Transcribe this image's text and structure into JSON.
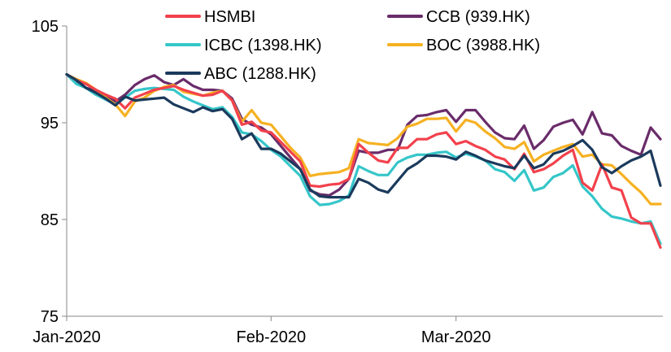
{
  "chart_data": {
    "type": "line",
    "title": "",
    "xlabel": "",
    "ylabel": "",
    "ylim": [
      75,
      105
    ],
    "yticks": [
      75,
      85,
      95,
      105
    ],
    "xticks": [
      {
        "label": "Jan-2020",
        "x": 0
      },
      {
        "label": "Feb-2020",
        "x": 21
      },
      {
        "label": "Mar-2020",
        "x": 40
      }
    ],
    "x_count": 62,
    "grid": false,
    "legend_position": "top",
    "series": [
      {
        "name": "HSMBI",
        "color": "#F2414C",
        "values": [
          100,
          99.4,
          99,
          98.4,
          97.9,
          97.5,
          96.5,
          97.6,
          98,
          98.4,
          98.6,
          98.8,
          98.4,
          98.1,
          97.8,
          97.9,
          98.3,
          97.3,
          94.8,
          95.1,
          94.2,
          94,
          93,
          92,
          91,
          88.5,
          88.4,
          88.6,
          88.7,
          89.2,
          92.8,
          91.9,
          91.1,
          90.9,
          92.4,
          92.4,
          93.3,
          93.3,
          93.8,
          94,
          92.8,
          93.1,
          92.6,
          92.2,
          91.5,
          91.2,
          90.2,
          91.8,
          89.9,
          90.2,
          90.8,
          91.6,
          92.2,
          88.8,
          88,
          90.7,
          88.3,
          88,
          85.2,
          84.6,
          84.6,
          82.1
        ]
      },
      {
        "name": "CCB (939.HK)",
        "color": "#6A2C6A",
        "values": [
          100,
          99.1,
          98.6,
          98.3,
          97.8,
          97.2,
          97.9,
          98.9,
          99.5,
          99.9,
          99.2,
          98.9,
          99.5,
          98.8,
          98.4,
          98.4,
          98.3,
          97.5,
          95.4,
          94.8,
          94.5,
          93.8,
          92.6,
          91.4,
          90.2,
          88,
          87.6,
          87.5,
          88.1,
          89.2,
          92.1,
          91.9,
          91.9,
          92.2,
          92.2,
          94.8,
          95.7,
          95.8,
          96.1,
          96.3,
          95.1,
          96.3,
          96.3,
          95.1,
          94,
          93.4,
          93.3,
          94.7,
          92.3,
          93.2,
          94.6,
          95,
          95.3,
          93.8,
          96.1,
          93.9,
          93.7,
          92.6,
          92.1,
          91.7,
          94.5,
          93.3
        ]
      },
      {
        "name": "ICBC (1398.HK)",
        "color": "#35C6C9",
        "values": [
          100,
          99,
          98.6,
          97.9,
          97.4,
          96.9,
          97.6,
          98.3,
          98.5,
          98.6,
          98.5,
          98.4,
          97.7,
          97.2,
          96.8,
          96.4,
          96.6,
          95.6,
          94,
          93.8,
          93.1,
          92.2,
          91.5,
          90.5,
          89.5,
          87.4,
          86.5,
          86.6,
          86.9,
          87.5,
          90.5,
          90,
          89.6,
          89.6,
          90.9,
          91.4,
          91.7,
          91.7,
          91.9,
          92,
          91.4,
          91.8,
          91.5,
          91.1,
          90.2,
          89.9,
          89,
          90.1,
          88,
          88.3,
          89.4,
          89.8,
          90.6,
          88.4,
          87.4,
          86.1,
          85.3,
          85.1,
          84.8,
          84.6,
          84.8,
          82.5
        ]
      },
      {
        "name": "BOC (3988.HK)",
        "color": "#F6B122",
        "values": [
          100,
          99.5,
          99.1,
          98.4,
          97.6,
          96.9,
          95.7,
          97.2,
          97.6,
          98.3,
          98.7,
          98.9,
          98.2,
          98,
          97.8,
          98.1,
          98.3,
          97.3,
          95.1,
          96.3,
          95,
          94.8,
          93.6,
          92.4,
          91.4,
          89.5,
          89.7,
          89.8,
          89.9,
          90.3,
          93.3,
          92.9,
          92.8,
          92.7,
          93.4,
          94.6,
          94.9,
          95.4,
          95.4,
          95.5,
          94.1,
          95.3,
          95,
          94.1,
          93.4,
          92.5,
          92.3,
          93,
          91,
          91.7,
          92.1,
          92.5,
          92.8,
          91.5,
          91.7,
          90.7,
          90.6,
          89.7,
          88.7,
          87.8,
          86.6,
          86.6
        ]
      },
      {
        "name": "ABC (1288.HK)",
        "color": "#1B3A5C",
        "values": [
          100,
          99.4,
          98.6,
          98.1,
          97.5,
          96.8,
          97.7,
          97.3,
          97.4,
          97.5,
          97.6,
          96.9,
          96.5,
          96.1,
          96.6,
          96.2,
          96.4,
          95.4,
          93.3,
          93.9,
          92.3,
          92.3,
          91.8,
          91,
          90.2,
          88.1,
          87.4,
          87.3,
          87.3,
          87.3,
          89.2,
          88.8,
          88.1,
          87.8,
          89,
          90.2,
          90.8,
          91.6,
          91.6,
          91.5,
          91.2,
          92,
          91.6,
          91.1,
          90.8,
          90.5,
          90.3,
          91.6,
          90.3,
          90.7,
          91.8,
          92.1,
          92.6,
          93.2,
          92.2,
          90.4,
          89.8,
          90.5,
          91.1,
          91.5,
          92.1,
          88.5
        ]
      }
    ]
  }
}
